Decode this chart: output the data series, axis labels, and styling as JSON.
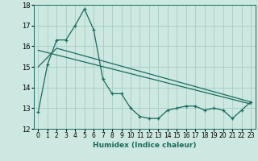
{
  "xlabel": "Humidex (Indice chaleur)",
  "xlim": [
    -0.5,
    23.5
  ],
  "ylim": [
    12,
    18
  ],
  "yticks": [
    12,
    13,
    14,
    15,
    16,
    17,
    18
  ],
  "xticks": [
    0,
    1,
    2,
    3,
    4,
    5,
    6,
    7,
    8,
    9,
    10,
    11,
    12,
    13,
    14,
    15,
    16,
    17,
    18,
    19,
    20,
    21,
    22,
    23
  ],
  "bg_color": "#cce8e0",
  "grid_color": "#aad0c8",
  "line_color": "#1a6b60",
  "line1_x": [
    0,
    1,
    2,
    3,
    4,
    5,
    6,
    7,
    8,
    9,
    10,
    11,
    12,
    13,
    14,
    15,
    16,
    17,
    18,
    19,
    20,
    21,
    22,
    23
  ],
  "line1_y": [
    12.8,
    15.1,
    16.3,
    16.3,
    17.0,
    17.8,
    16.8,
    14.4,
    13.7,
    13.7,
    13.0,
    12.6,
    12.5,
    12.5,
    12.9,
    13.0,
    13.1,
    13.1,
    12.9,
    13.0,
    12.9,
    12.5,
    12.9,
    13.3
  ],
  "line2_x": [
    0,
    2,
    23
  ],
  "line2_y": [
    15.0,
    15.9,
    13.3
  ],
  "line3_x": [
    0,
    23
  ],
  "line3_y": [
    15.8,
    13.2
  ]
}
